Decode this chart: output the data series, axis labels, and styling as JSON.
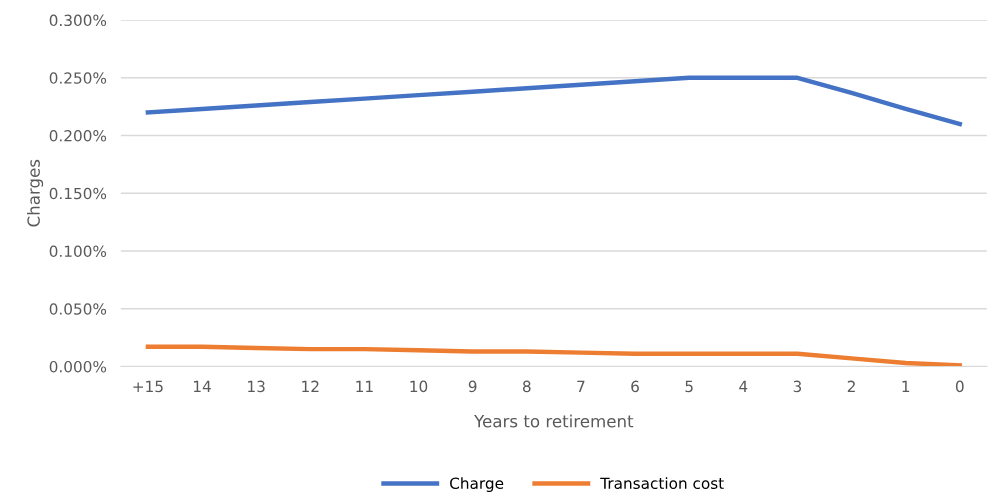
{
  "chart_data": {
    "type": "line",
    "xlabel": "Years to retirement",
    "ylabel": "Charges",
    "categories": [
      "+15",
      "14",
      "13",
      "12",
      "11",
      "10",
      "9",
      "8",
      "7",
      "6",
      "5",
      "4",
      "3",
      "2",
      "1",
      "0"
    ],
    "series": [
      {
        "name": "Charge",
        "color": "#4472c4",
        "values": [
          0.22,
          0.223,
          0.226,
          0.229,
          0.232,
          0.235,
          0.238,
          0.241,
          0.244,
          0.247,
          0.25,
          0.25,
          0.25,
          0.237,
          0.223,
          0.21
        ]
      },
      {
        "name": "Transaction cost",
        "color": "#ed7d31",
        "values": [
          0.017,
          0.017,
          0.016,
          0.015,
          0.015,
          0.014,
          0.013,
          0.013,
          0.012,
          0.011,
          0.011,
          0.011,
          0.011,
          0.007,
          0.003,
          0.001
        ]
      }
    ],
    "ylim": [
      0,
      0.3
    ],
    "yticks": [
      {
        "value": 0,
        "label": "0.000%"
      },
      {
        "value": 0.05,
        "label": "0.050%"
      },
      {
        "value": 0.1,
        "label": "0.100%"
      },
      {
        "value": 0.15,
        "label": "0.150%"
      },
      {
        "value": 0.2,
        "label": "0.200%"
      },
      {
        "value": 0.25,
        "label": "0.250%"
      },
      {
        "value": 0.3,
        "label": "0.300%"
      }
    ],
    "grid": "y",
    "legend": "bottom",
    "marker": "none",
    "line_style": "solid"
  }
}
